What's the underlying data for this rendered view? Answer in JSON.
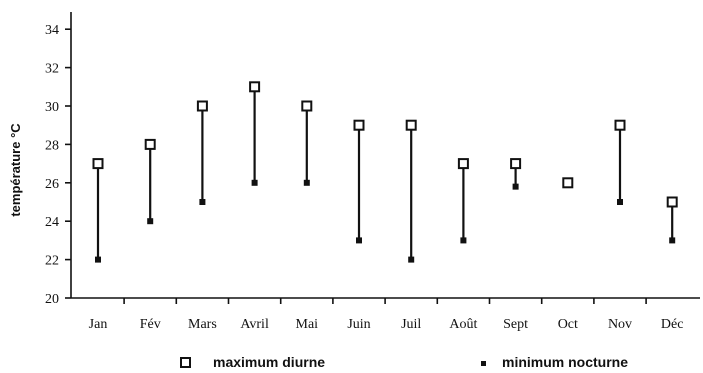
{
  "chart_data": {
    "type": "range",
    "ylabel": "température °C",
    "ylim": [
      20,
      35
    ],
    "yticks": [
      20,
      22,
      24,
      26,
      28,
      30,
      32,
      34
    ],
    "categories": [
      "Jan",
      "Fév",
      "Mars",
      "Avril",
      "Mai",
      "Juin",
      "Juil",
      "Août",
      "Sept",
      "Oct",
      "Nov",
      "Déc"
    ],
    "series": [
      {
        "name": "maximum diurne",
        "marker": "open-square",
        "values": [
          27,
          28,
          30,
          31,
          30,
          29,
          29,
          27,
          27,
          26,
          29,
          25
        ]
      },
      {
        "name": "minimum nocturne",
        "marker": "filled-square",
        "values": [
          22,
          24,
          25,
          26,
          26,
          23,
          22,
          23,
          25.8,
          null,
          25,
          23
        ]
      }
    ],
    "legend": {
      "position": "bottom"
    },
    "grid": false
  }
}
